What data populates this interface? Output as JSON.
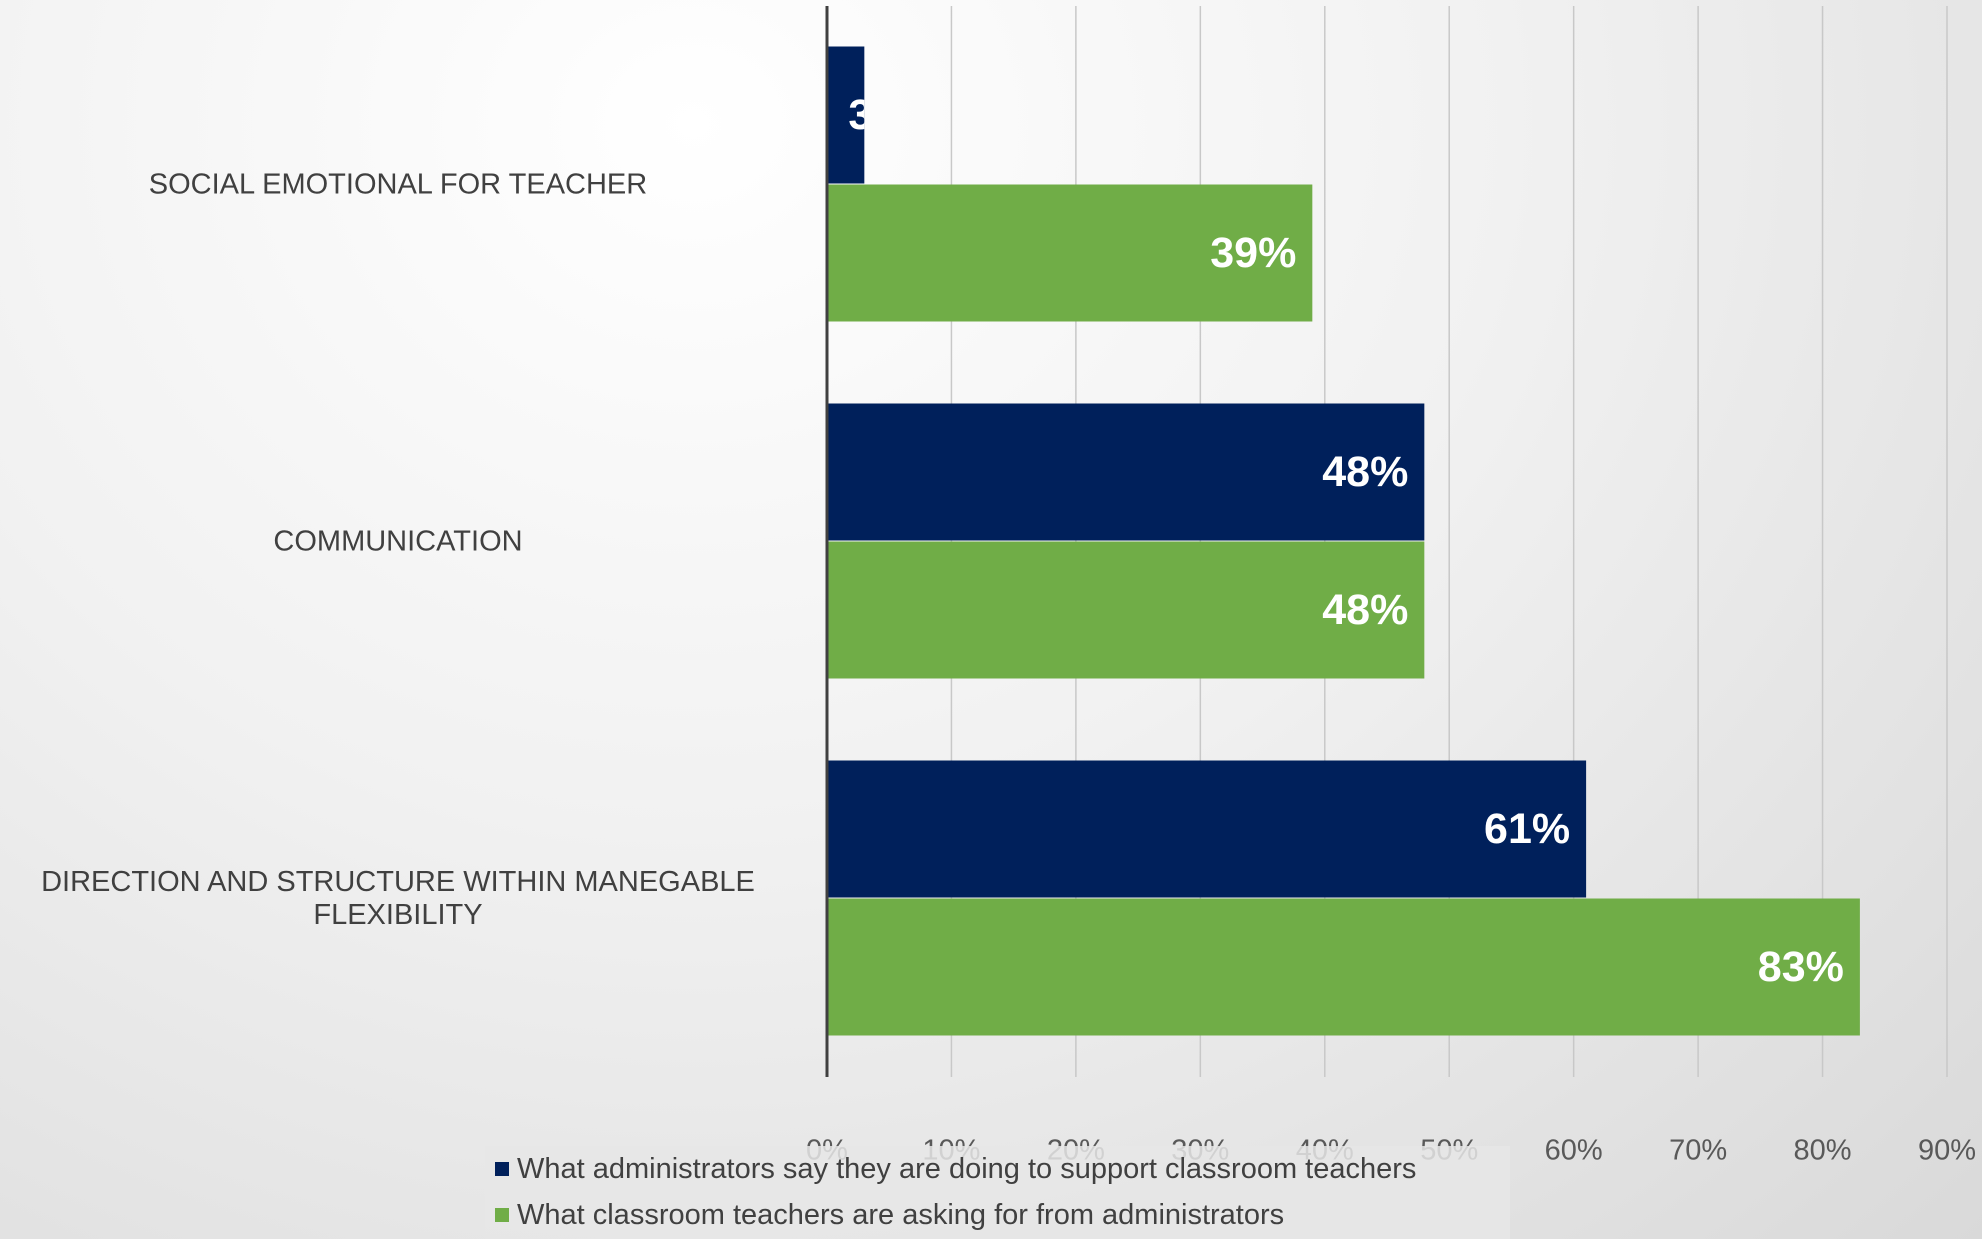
{
  "chart_data": {
    "type": "hbar",
    "categories": [
      "SOCIAL EMOTIONAL FOR TEACHER",
      "COMMUNICATION",
      "DIRECTION AND STRUCTURE WITHIN MANEGABLE FLEXIBILITY"
    ],
    "series": [
      {
        "name": "What administrators say they are doing to support classroom teachers",
        "color": "#00205b",
        "values": [
          3,
          48,
          61
        ],
        "value_labels": [
          "3%",
          "48%",
          "61%"
        ]
      },
      {
        "name": "What classroom teachers are asking for from administrators",
        "color": "#70ad47",
        "values": [
          39,
          48,
          83
        ],
        "value_labels": [
          "39%",
          "48%",
          "83%"
        ]
      }
    ],
    "xlim": [
      0,
      90
    ],
    "xticks": [
      {
        "value": 0,
        "label": "0%"
      },
      {
        "value": 10,
        "label": "10%"
      },
      {
        "value": 20,
        "label": "20%"
      },
      {
        "value": 30,
        "label": "30%"
      },
      {
        "value": 40,
        "label": "40%"
      },
      {
        "value": 50,
        "label": "50%"
      },
      {
        "value": 60,
        "label": "60%"
      },
      {
        "value": 70,
        "label": "70%"
      },
      {
        "value": 80,
        "label": "80%"
      },
      {
        "value": 90,
        "label": "90%"
      }
    ],
    "grid": true
  }
}
